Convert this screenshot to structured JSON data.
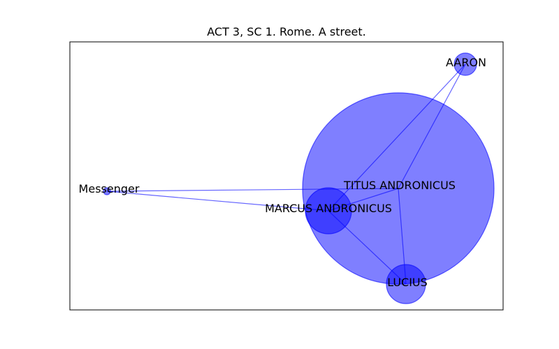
{
  "title": "ACT 3, SC 1. Rome. A street.",
  "colors": {
    "node_fill": "#0000ff",
    "node_fill_opacity": 0.5,
    "edge_color": "#0000ff",
    "edge_opacity": 0.6,
    "frame": "#000000"
  },
  "nodes": [
    {
      "id": "titus",
      "label": "TITUS ANDRONICUS"
    },
    {
      "id": "marcus",
      "label": "MARCUS ANDRONICUS"
    },
    {
      "id": "lucius",
      "label": "LUCIUS"
    },
    {
      "id": "aaron",
      "label": "AARON"
    },
    {
      "id": "messenger",
      "label": "Messenger"
    }
  ],
  "edges": [
    {
      "source": "messenger",
      "target": "titus"
    },
    {
      "source": "messenger",
      "target": "marcus"
    },
    {
      "source": "titus",
      "target": "aaron"
    },
    {
      "source": "titus",
      "target": "lucius"
    },
    {
      "source": "titus",
      "target": "marcus"
    },
    {
      "source": "marcus",
      "target": "aaron"
    },
    {
      "source": "marcus",
      "target": "lucius"
    }
  ]
}
